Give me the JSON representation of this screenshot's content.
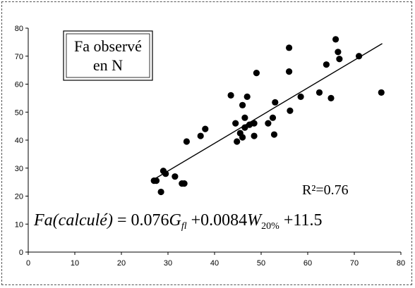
{
  "chart_data": {
    "type": "scatter",
    "xlim": [
      0,
      80
    ],
    "ylim": [
      0,
      80
    ],
    "xticks": [
      0,
      10,
      20,
      30,
      40,
      50,
      60,
      70,
      80
    ],
    "yticks": [
      0,
      10,
      20,
      30,
      40,
      50,
      60,
      70,
      80
    ],
    "grid": false,
    "legend_lines": [
      "Fa observé",
      "en N"
    ],
    "annotation_r2": "R²=0.76",
    "formula": {
      "lhs_fn": "Fa",
      "lhs_arg": "(calculé)",
      "eq": " = 0.076",
      "g": "G",
      "g_sub": "fl",
      "plus1": " +0.0084",
      "w": "W",
      "w_sub": "20%",
      "plus2": " +11.5"
    },
    "trendline": {
      "x": [
        27,
        76
      ],
      "y": [
        26,
        74.5
      ]
    },
    "points": [
      {
        "x": 27.0,
        "y": 25.5
      },
      {
        "x": 27.5,
        "y": 25.5
      },
      {
        "x": 28.5,
        "y": 21.5
      },
      {
        "x": 29.0,
        "y": 29.0
      },
      {
        "x": 29.5,
        "y": 28.0
      },
      {
        "x": 31.5,
        "y": 27.0
      },
      {
        "x": 33.0,
        "y": 24.5
      },
      {
        "x": 33.5,
        "y": 24.5
      },
      {
        "x": 34.0,
        "y": 39.5
      },
      {
        "x": 37.0,
        "y": 41.5
      },
      {
        "x": 38.0,
        "y": 44.0
      },
      {
        "x": 43.5,
        "y": 56.0
      },
      {
        "x": 44.5,
        "y": 46.0
      },
      {
        "x": 44.8,
        "y": 39.5
      },
      {
        "x": 45.5,
        "y": 42.5
      },
      {
        "x": 46.0,
        "y": 52.5
      },
      {
        "x": 46.0,
        "y": 41.0
      },
      {
        "x": 46.5,
        "y": 44.5
      },
      {
        "x": 46.5,
        "y": 48.0
      },
      {
        "x": 47.0,
        "y": 55.5
      },
      {
        "x": 47.5,
        "y": 45.5
      },
      {
        "x": 48.5,
        "y": 46.0
      },
      {
        "x": 48.5,
        "y": 41.5
      },
      {
        "x": 49.0,
        "y": 64.0
      },
      {
        "x": 51.5,
        "y": 46.0
      },
      {
        "x": 52.5,
        "y": 48.0
      },
      {
        "x": 52.8,
        "y": 42.0
      },
      {
        "x": 53.0,
        "y": 53.5
      },
      {
        "x": 56.0,
        "y": 73.0
      },
      {
        "x": 56.0,
        "y": 64.5
      },
      {
        "x": 56.2,
        "y": 50.5
      },
      {
        "x": 58.5,
        "y": 55.5
      },
      {
        "x": 62.5,
        "y": 57.0
      },
      {
        "x": 64.0,
        "y": 67.0
      },
      {
        "x": 65.0,
        "y": 55.0
      },
      {
        "x": 66.0,
        "y": 76.0
      },
      {
        "x": 66.5,
        "y": 71.5
      },
      {
        "x": 66.8,
        "y": 69.0
      },
      {
        "x": 71.0,
        "y": 70.0
      },
      {
        "x": 75.8,
        "y": 57.0
      }
    ]
  }
}
